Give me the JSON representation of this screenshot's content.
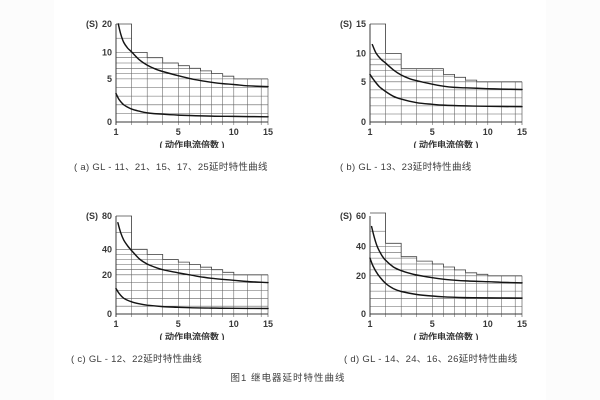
{
  "figure": {
    "title": "图1  继电器延时特性曲线"
  },
  "chart_data": [
    {
      "type": "line",
      "title": "( a) GL - 11、21、15、17、25延时特性曲线",
      "xlabel": "( 动作电流倍数 )",
      "ylabel": "(S)",
      "xlim": [
        1,
        15
      ],
      "ylim": [
        0,
        20
      ],
      "x_ticks": [
        1,
        5,
        10,
        15
      ],
      "y_ticks": [
        0,
        5,
        10,
        20
      ],
      "x_gridlines": [
        2,
        3,
        4,
        5,
        6,
        7,
        8,
        9,
        10,
        12,
        14
      ],
      "y_gridlines": [
        1,
        2,
        3,
        4,
        5,
        6,
        7,
        8,
        9,
        10,
        15
      ],
      "x_scale_anchors": [
        [
          1,
          0
        ],
        [
          5,
          0.41
        ],
        [
          10,
          0.775
        ],
        [
          15,
          1
        ]
      ],
      "y_scale_anchors": [
        [
          0,
          0
        ],
        [
          5,
          0.44
        ],
        [
          10,
          0.71
        ],
        [
          20,
          1
        ]
      ],
      "tolerance_steps": [
        [
          1,
          2,
          20
        ],
        [
          2,
          3,
          10
        ],
        [
          3,
          4,
          9
        ],
        [
          4,
          5,
          8
        ],
        [
          5,
          6,
          7.5
        ],
        [
          6,
          7,
          7
        ],
        [
          7,
          8,
          6.5
        ],
        [
          8,
          9,
          6
        ],
        [
          9,
          10,
          5.5
        ],
        [
          10,
          15,
          5
        ]
      ],
      "series": [
        {
          "name": "upper-limit-curve",
          "points": [
            [
              1.15,
              20
            ],
            [
              1.3,
              16.5
            ],
            [
              1.5,
              13.5
            ],
            [
              1.75,
              11.5
            ],
            [
              2,
              10.2
            ],
            [
              2.5,
              8.6
            ],
            [
              3,
              7.6
            ],
            [
              3.5,
              6.9
            ],
            [
              4,
              6.4
            ],
            [
              5,
              5.6
            ],
            [
              6,
              5.1
            ],
            [
              7,
              4.8
            ],
            [
              8,
              4.6
            ],
            [
              9,
              4.45
            ],
            [
              10,
              4.35
            ],
            [
              12,
              4.2
            ],
            [
              15,
              4.1
            ]
          ]
        },
        {
          "name": "lower-limit-curve",
          "points": [
            [
              1,
              3.3
            ],
            [
              1.2,
              2.6
            ],
            [
              1.5,
              2
            ],
            [
              2,
              1.5
            ],
            [
              2.5,
              1.25
            ],
            [
              3,
              1.05
            ],
            [
              4,
              0.9
            ],
            [
              5,
              0.8
            ],
            [
              6,
              0.75
            ],
            [
              8,
              0.68
            ],
            [
              10,
              0.65
            ],
            [
              15,
              0.6
            ]
          ]
        }
      ]
    },
    {
      "type": "line",
      "title": "( b) GL - 13、23延时特性曲线",
      "xlabel": "( 动作电流倍数 )",
      "ylabel": "(S)",
      "xlim": [
        1,
        15
      ],
      "ylim": [
        0,
        15
      ],
      "x_ticks": [
        1,
        5,
        10,
        15
      ],
      "y_ticks": [
        0,
        5,
        10,
        15
      ],
      "x_gridlines": [
        2,
        3,
        4,
        5,
        6,
        7,
        8,
        9,
        10,
        12,
        14
      ],
      "y_gridlines": [
        1,
        2,
        3,
        4,
        5,
        6,
        7,
        8,
        9,
        10
      ],
      "x_scale_anchors": [
        [
          1,
          0
        ],
        [
          5,
          0.41
        ],
        [
          10,
          0.775
        ],
        [
          15,
          1
        ]
      ],
      "y_scale_anchors": [
        [
          0,
          0
        ],
        [
          5,
          0.41
        ],
        [
          10,
          0.7
        ],
        [
          15,
          1
        ]
      ],
      "tolerance_steps": [
        [
          1,
          2,
          15
        ],
        [
          2,
          3,
          10
        ],
        [
          3,
          6,
          7.3
        ],
        [
          6,
          7,
          6.3
        ],
        [
          7,
          8,
          5.8
        ],
        [
          8,
          9,
          5.3
        ],
        [
          9,
          15,
          5
        ]
      ],
      "series": [
        {
          "name": "upper-limit-curve",
          "points": [
            [
              1.15,
              11.5
            ],
            [
              1.4,
              10
            ],
            [
              1.7,
              9
            ],
            [
              2,
              8.3
            ],
            [
              2.5,
              7.1
            ],
            [
              3,
              6.2
            ],
            [
              3.5,
              5.6
            ],
            [
              4,
              5.2
            ],
            [
              5,
              4.7
            ],
            [
              6,
              4.45
            ],
            [
              7,
              4.3
            ],
            [
              8,
              4.25
            ],
            [
              10,
              4.15
            ],
            [
              12,
              4.1
            ],
            [
              15,
              4.05
            ]
          ]
        },
        {
          "name": "lower-limit-curve",
          "points": [
            [
              1,
              6.3
            ],
            [
              1.25,
              5.3
            ],
            [
              1.6,
              4.4
            ],
            [
              2,
              3.8
            ],
            [
              2.5,
              3.2
            ],
            [
              3,
              2.85
            ],
            [
              4,
              2.4
            ],
            [
              5,
              2.2
            ],
            [
              6,
              2.1
            ],
            [
              8,
              2
            ],
            [
              10,
              1.95
            ],
            [
              15,
              1.9
            ]
          ]
        }
      ]
    },
    {
      "type": "line",
      "title": "( c) GL - 12、22延时特性曲线",
      "xlabel": "( 动作电流倍数 )",
      "ylabel": "(S)",
      "xlim": [
        1,
        15
      ],
      "ylim": [
        0,
        80
      ],
      "x_ticks": [
        1,
        5,
        10,
        15
      ],
      "y_ticks": [
        0,
        20,
        40,
        80
      ],
      "x_gridlines": [
        2,
        3,
        4,
        5,
        6,
        7,
        8,
        9,
        10,
        12,
        14
      ],
      "y_gridlines": [
        4,
        8,
        12,
        16,
        20,
        24,
        28,
        32,
        36,
        40,
        60
      ],
      "x_scale_anchors": [
        [
          1,
          0
        ],
        [
          5,
          0.41
        ],
        [
          10,
          0.775
        ],
        [
          15,
          1
        ]
      ],
      "y_scale_anchors": [
        [
          0,
          0
        ],
        [
          20,
          0.4
        ],
        [
          40,
          0.66
        ],
        [
          80,
          1
        ]
      ],
      "tolerance_steps": [
        [
          1,
          2,
          80
        ],
        [
          2,
          3,
          40
        ],
        [
          3,
          4,
          36
        ],
        [
          4,
          5,
          32
        ],
        [
          5,
          6,
          30
        ],
        [
          6,
          7,
          28
        ],
        [
          7,
          8,
          26
        ],
        [
          8,
          9,
          24
        ],
        [
          9,
          10,
          22
        ],
        [
          10,
          15,
          20
        ]
      ],
      "series": [
        {
          "name": "upper-limit-curve",
          "points": [
            [
              1.12,
              72
            ],
            [
              1.3,
              60
            ],
            [
              1.5,
              51
            ],
            [
              1.75,
              44
            ],
            [
              2,
              39
            ],
            [
              2.5,
              32.5
            ],
            [
              3,
              28.5
            ],
            [
              3.5,
              26
            ],
            [
              4,
              24
            ],
            [
              5,
              21.5
            ],
            [
              6,
              20
            ],
            [
              7,
              19
            ],
            [
              8,
              18.2
            ],
            [
              10,
              17.2
            ],
            [
              12,
              16.6
            ],
            [
              15,
              16
            ]
          ]
        },
        {
          "name": "lower-limit-curve",
          "points": [
            [
              1,
              13
            ],
            [
              1.2,
              10.5
            ],
            [
              1.5,
              8
            ],
            [
              2,
              6.2
            ],
            [
              2.5,
              5.2
            ],
            [
              3,
              4.5
            ],
            [
              4,
              3.8
            ],
            [
              5,
              3.4
            ],
            [
              6,
              3.2
            ],
            [
              8,
              3
            ],
            [
              10,
              2.9
            ],
            [
              15,
              2.8
            ]
          ]
        }
      ]
    },
    {
      "type": "line",
      "title": "( d) GL - 14、24、16、26延时特性曲线",
      "xlabel": "( 动作电流倍数 )",
      "ylabel": "(S)",
      "xlim": [
        1,
        15
      ],
      "ylim": [
        0,
        60
      ],
      "x_ticks": [
        1,
        5,
        10,
        15
      ],
      "y_ticks": [
        0,
        20,
        40,
        60
      ],
      "x_gridlines": [
        2,
        3,
        4,
        5,
        6,
        7,
        8,
        9,
        10,
        12,
        14
      ],
      "y_gridlines": [
        4,
        8,
        12,
        16,
        20,
        24,
        28,
        32,
        36,
        40,
        50
      ],
      "x_scale_anchors": [
        [
          1,
          0
        ],
        [
          5,
          0.41
        ],
        [
          10,
          0.775
        ],
        [
          15,
          1
        ]
      ],
      "y_scale_anchors": [
        [
          0,
          0
        ],
        [
          20,
          0.39
        ],
        [
          40,
          0.69
        ],
        [
          60,
          1
        ]
      ],
      "tolerance_steps": [
        [
          1,
          2,
          62
        ],
        [
          2,
          3,
          42
        ],
        [
          3,
          4,
          33
        ],
        [
          4,
          5,
          30
        ],
        [
          5,
          6,
          28
        ],
        [
          6,
          7,
          26
        ],
        [
          7,
          8,
          24
        ],
        [
          8,
          9,
          22
        ],
        [
          9,
          10,
          21
        ],
        [
          10,
          15,
          20
        ]
      ],
      "series": [
        {
          "name": "upper-limit-curve",
          "points": [
            [
              1.1,
              53
            ],
            [
              1.3,
              45
            ],
            [
              1.5,
              39
            ],
            [
              1.75,
              34
            ],
            [
              2,
              30.5
            ],
            [
              2.5,
              26
            ],
            [
              3,
              23.5
            ],
            [
              3.5,
              21.8
            ],
            [
              4,
              20.5
            ],
            [
              5,
              19
            ],
            [
              6,
              18.2
            ],
            [
              7,
              17.7
            ],
            [
              8,
              17.3
            ],
            [
              10,
              16.9
            ],
            [
              12,
              16.6
            ],
            [
              15,
              16.3
            ]
          ]
        },
        {
          "name": "lower-limit-curve",
          "points": [
            [
              1,
              32
            ],
            [
              1.2,
              26.5
            ],
            [
              1.5,
              21
            ],
            [
              2,
              16
            ],
            [
              2.5,
              13.3
            ],
            [
              3,
              11.8
            ],
            [
              4,
              10.2
            ],
            [
              5,
              9.4
            ],
            [
              6,
              9
            ],
            [
              8,
              8.6
            ],
            [
              10,
              8.5
            ],
            [
              15,
              8.3
            ]
          ]
        }
      ]
    }
  ]
}
